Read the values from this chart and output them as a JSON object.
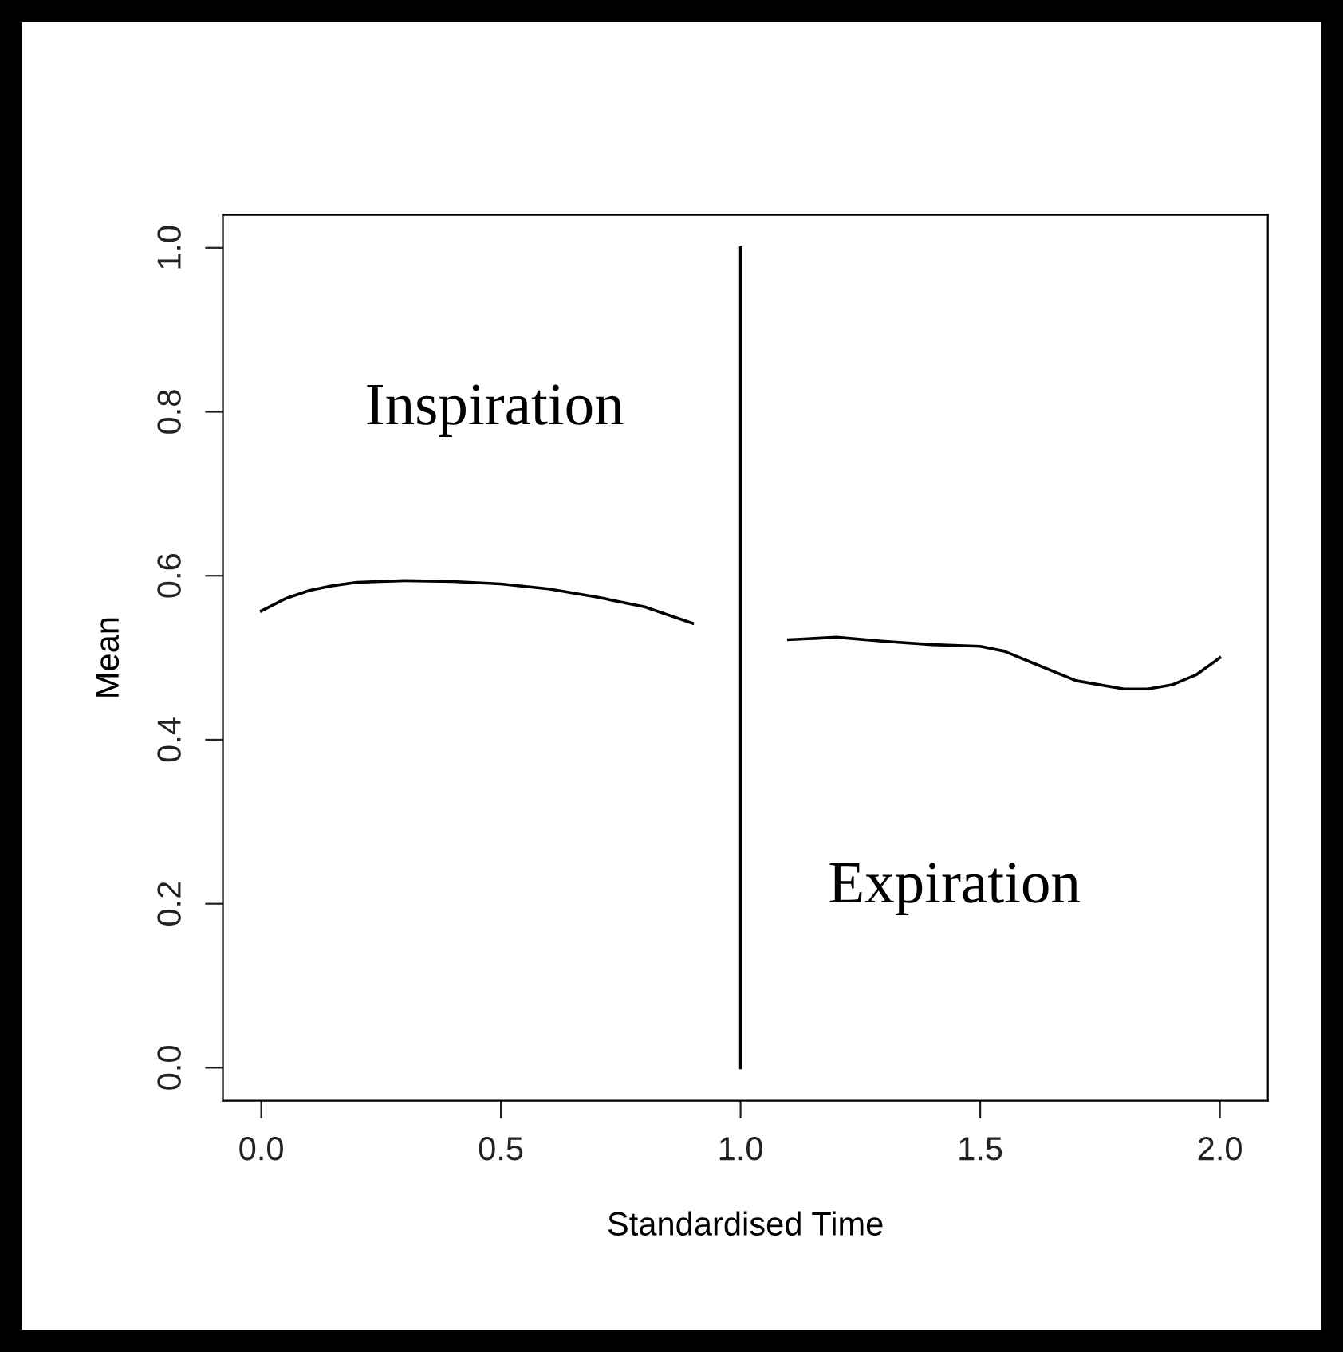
{
  "chart_data": {
    "type": "line",
    "xlabel": "Standardised Time",
    "ylabel": "Mean",
    "xlim": [
      -0.08,
      2.1
    ],
    "ylim": [
      -0.04,
      1.04
    ],
    "xticks": [
      {
        "value": 0,
        "label": "0.0"
      },
      0.5,
      {
        "value": 1,
        "label": "1.0"
      },
      1.5,
      {
        "value": 2,
        "label": "2.0"
      }
    ],
    "yticks": [
      {
        "value": 0,
        "label": "0.0"
      },
      0.2,
      0.4,
      0.6,
      0.8,
      {
        "value": 1,
        "label": "1.0"
      }
    ],
    "series": [
      {
        "color": "#000000",
        "x": [
          0,
          0.05,
          0.1,
          0.15,
          0.2,
          0.3,
          0.4,
          0.5,
          0.6,
          0.7,
          0.8,
          0.9
        ],
        "values": [
          0.557,
          0.572,
          0.582,
          0.588,
          0.592,
          0.594,
          0.593,
          0.59,
          0.584,
          0.574,
          0.562,
          0.542
        ]
      },
      {
        "color": "#000000",
        "x": [
          1.1,
          1.2,
          1.3,
          1.4,
          1.5,
          1.55,
          1.6,
          1.7,
          1.8,
          1.85,
          1.9,
          1.95,
          2.0
        ],
        "values": [
          0.522,
          0.525,
          0.52,
          0.516,
          0.514,
          0.508,
          0.496,
          0.472,
          0.462,
          0.462,
          0.467,
          0.479,
          0.5
        ]
      }
    ],
    "ref_lines": [
      {
        "axis": "x",
        "value": 1,
        "color": "#000000",
        "line_style": "solid"
      }
    ],
    "annotations": [
      "Inspiration",
      "Expiration"
    ],
    "grid": false,
    "legend": false,
    "marker": "none",
    "line_style": "solid"
  }
}
